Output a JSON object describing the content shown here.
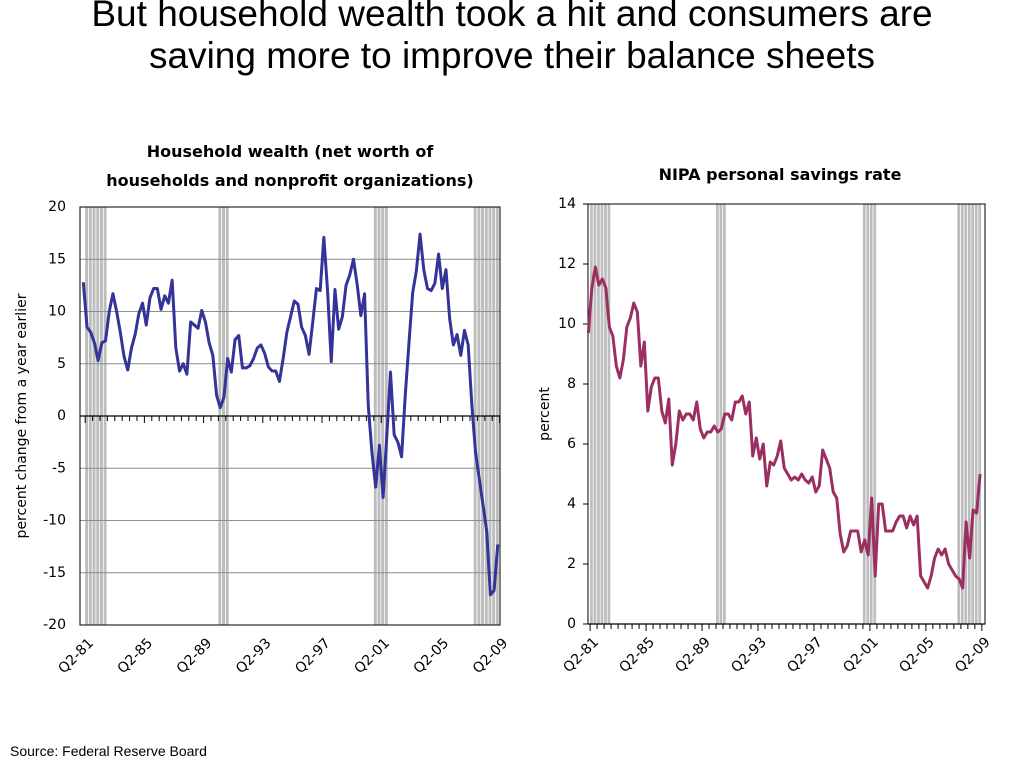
{
  "title": "But household wealth took a hit and consumers are saving more to improve their balance sheets",
  "source": "Source: Federal Reserve Board",
  "chart_data": [
    {
      "type": "line",
      "title": "Household wealth (net worth of households and nonprofit organizations)",
      "ylabel": "percent change from a year earlier",
      "categories": [
        "Q2-81",
        null,
        null,
        null,
        null,
        null,
        null,
        null,
        null,
        null,
        null,
        null,
        null,
        null,
        null,
        null,
        "Q2-85",
        null,
        null,
        null,
        null,
        null,
        null,
        null,
        null,
        null,
        null,
        null,
        null,
        null,
        null,
        null,
        "Q2-89",
        null,
        null,
        null,
        null,
        null,
        null,
        null,
        null,
        null,
        null,
        null,
        null,
        null,
        null,
        null,
        "Q2-93",
        null,
        null,
        null,
        null,
        null,
        null,
        null,
        null,
        null,
        null,
        null,
        null,
        null,
        null,
        null,
        "Q2-97",
        null,
        null,
        null,
        null,
        null,
        null,
        null,
        null,
        null,
        null,
        null,
        null,
        null,
        null,
        null,
        "Q2-01",
        null,
        null,
        null,
        null,
        null,
        null,
        null,
        null,
        null,
        null,
        null,
        null,
        null,
        null,
        null,
        "Q2-05",
        null,
        null,
        null,
        null,
        null,
        null,
        null,
        null,
        null,
        null,
        null,
        null,
        null,
        null,
        null,
        "Q2-09"
      ],
      "values": [
        12.8,
        8.5,
        8,
        7,
        5.3,
        7,
        7.2,
        10,
        11.7,
        10,
        8,
        5.7,
        4.4,
        6.5,
        7.8,
        9.8,
        10.8,
        8.7,
        11.3,
        12.2,
        12.2,
        10.2,
        11.5,
        10.8,
        13,
        6.5,
        4.3,
        5,
        4,
        9,
        8.7,
        8.4,
        10.1,
        9,
        7,
        5.8,
        2,
        0.8,
        1.8,
        5.5,
        4.2,
        7.3,
        7.7,
        4.6,
        4.6,
        4.8,
        5.5,
        6.5,
        6.8,
        6,
        4.7,
        4.3,
        4.3,
        3.3,
        5.5,
        8,
        9.5,
        11,
        10.7,
        8.5,
        7.7,
        5.9,
        9,
        12.2,
        12,
        17.1,
        12,
        5.2,
        12.1,
        8.3,
        9.5,
        12.5,
        13.5,
        15,
        12.6,
        9.6,
        11.7,
        1,
        -3.5,
        -6.8,
        -2.8,
        -7.8,
        -2,
        4.2,
        -1.8,
        -2.5,
        -3.9,
        2,
        7,
        11.8,
        13.9,
        17.4,
        14,
        12.2,
        12,
        12.7,
        15.5,
        12.2,
        14,
        9.3,
        6.8,
        7.8,
        5.8,
        8.2,
        6.8,
        1,
        -3.5,
        -6,
        -8.5,
        -11,
        -17.1,
        -16.7,
        -12.3
      ],
      "color": "#333399",
      "ylim": [
        -20,
        20
      ],
      "yticks": [
        -20,
        -15,
        -10,
        -5,
        0,
        5,
        10,
        15,
        20
      ],
      "grid": true,
      "shaded": [
        [
          1,
          6
        ],
        [
          37,
          39
        ],
        [
          79,
          82
        ],
        [
          106,
          112
        ]
      ]
    },
    {
      "type": "line",
      "title": "NIPA personal savings rate",
      "ylabel": "percent",
      "categories": [
        "Q2-81",
        null,
        null,
        null,
        null,
        null,
        null,
        null,
        null,
        null,
        null,
        null,
        null,
        null,
        null,
        null,
        "Q2-85",
        null,
        null,
        null,
        null,
        null,
        null,
        null,
        null,
        null,
        null,
        null,
        null,
        null,
        null,
        null,
        "Q2-89",
        null,
        null,
        null,
        null,
        null,
        null,
        null,
        null,
        null,
        null,
        null,
        null,
        null,
        null,
        null,
        "Q2-93",
        null,
        null,
        null,
        null,
        null,
        null,
        null,
        null,
        null,
        null,
        null,
        null,
        null,
        null,
        null,
        "Q2-97",
        null,
        null,
        null,
        null,
        null,
        null,
        null,
        null,
        null,
        null,
        null,
        null,
        null,
        null,
        null,
        "Q2-01",
        null,
        null,
        null,
        null,
        null,
        null,
        null,
        null,
        null,
        null,
        null,
        null,
        null,
        null,
        null,
        "Q2-05",
        null,
        null,
        null,
        null,
        null,
        null,
        null,
        null,
        null,
        null,
        null,
        null,
        null,
        null,
        null,
        "Q2-09"
      ],
      "values": [
        9.7,
        11.2,
        11.9,
        11.3,
        11.5,
        11.2,
        9.9,
        9.6,
        8.6,
        8.2,
        8.8,
        9.9,
        10.2,
        10.7,
        10.4,
        8.6,
        9.4,
        7.1,
        7.9,
        8.2,
        8.2,
        7.1,
        6.7,
        7.5,
        5.3,
        6,
        7.1,
        6.8,
        7,
        7,
        6.8,
        7.4,
        6.5,
        6.2,
        6.4,
        6.4,
        6.6,
        6.4,
        6.5,
        7,
        7,
        6.8,
        7.4,
        7.4,
        7.6,
        7,
        7.4,
        5.6,
        6.2,
        5.5,
        6,
        4.6,
        5.4,
        5.3,
        5.6,
        6.1,
        5.2,
        5,
        4.8,
        4.9,
        4.8,
        5,
        4.8,
        4.7,
        4.9,
        4.4,
        4.6,
        5.8,
        5.5,
        5.2,
        4.4,
        4.2,
        3,
        2.4,
        2.6,
        3.1,
        3.1,
        3.1,
        2.4,
        2.8,
        2.3,
        4.2,
        1.6,
        4,
        4,
        3.1,
        3.1,
        3.1,
        3.4,
        3.6,
        3.6,
        3.2,
        3.6,
        3.3,
        3.6,
        1.6,
        1.4,
        1.2,
        1.6,
        2.2,
        2.5,
        2.3,
        2.5,
        2,
        1.8,
        1.6,
        1.5,
        1.2,
        3.4,
        2.2,
        3.8,
        3.7,
        5
      ],
      "color": "#9b2f62",
      "ylim": [
        0,
        14
      ],
      "yticks": [
        0,
        2,
        4,
        6,
        8,
        10,
        12,
        14
      ],
      "grid": false,
      "shaded": [
        [
          1,
          6
        ],
        [
          37,
          39
        ],
        [
          79,
          82
        ],
        [
          106,
          112
        ]
      ]
    }
  ]
}
